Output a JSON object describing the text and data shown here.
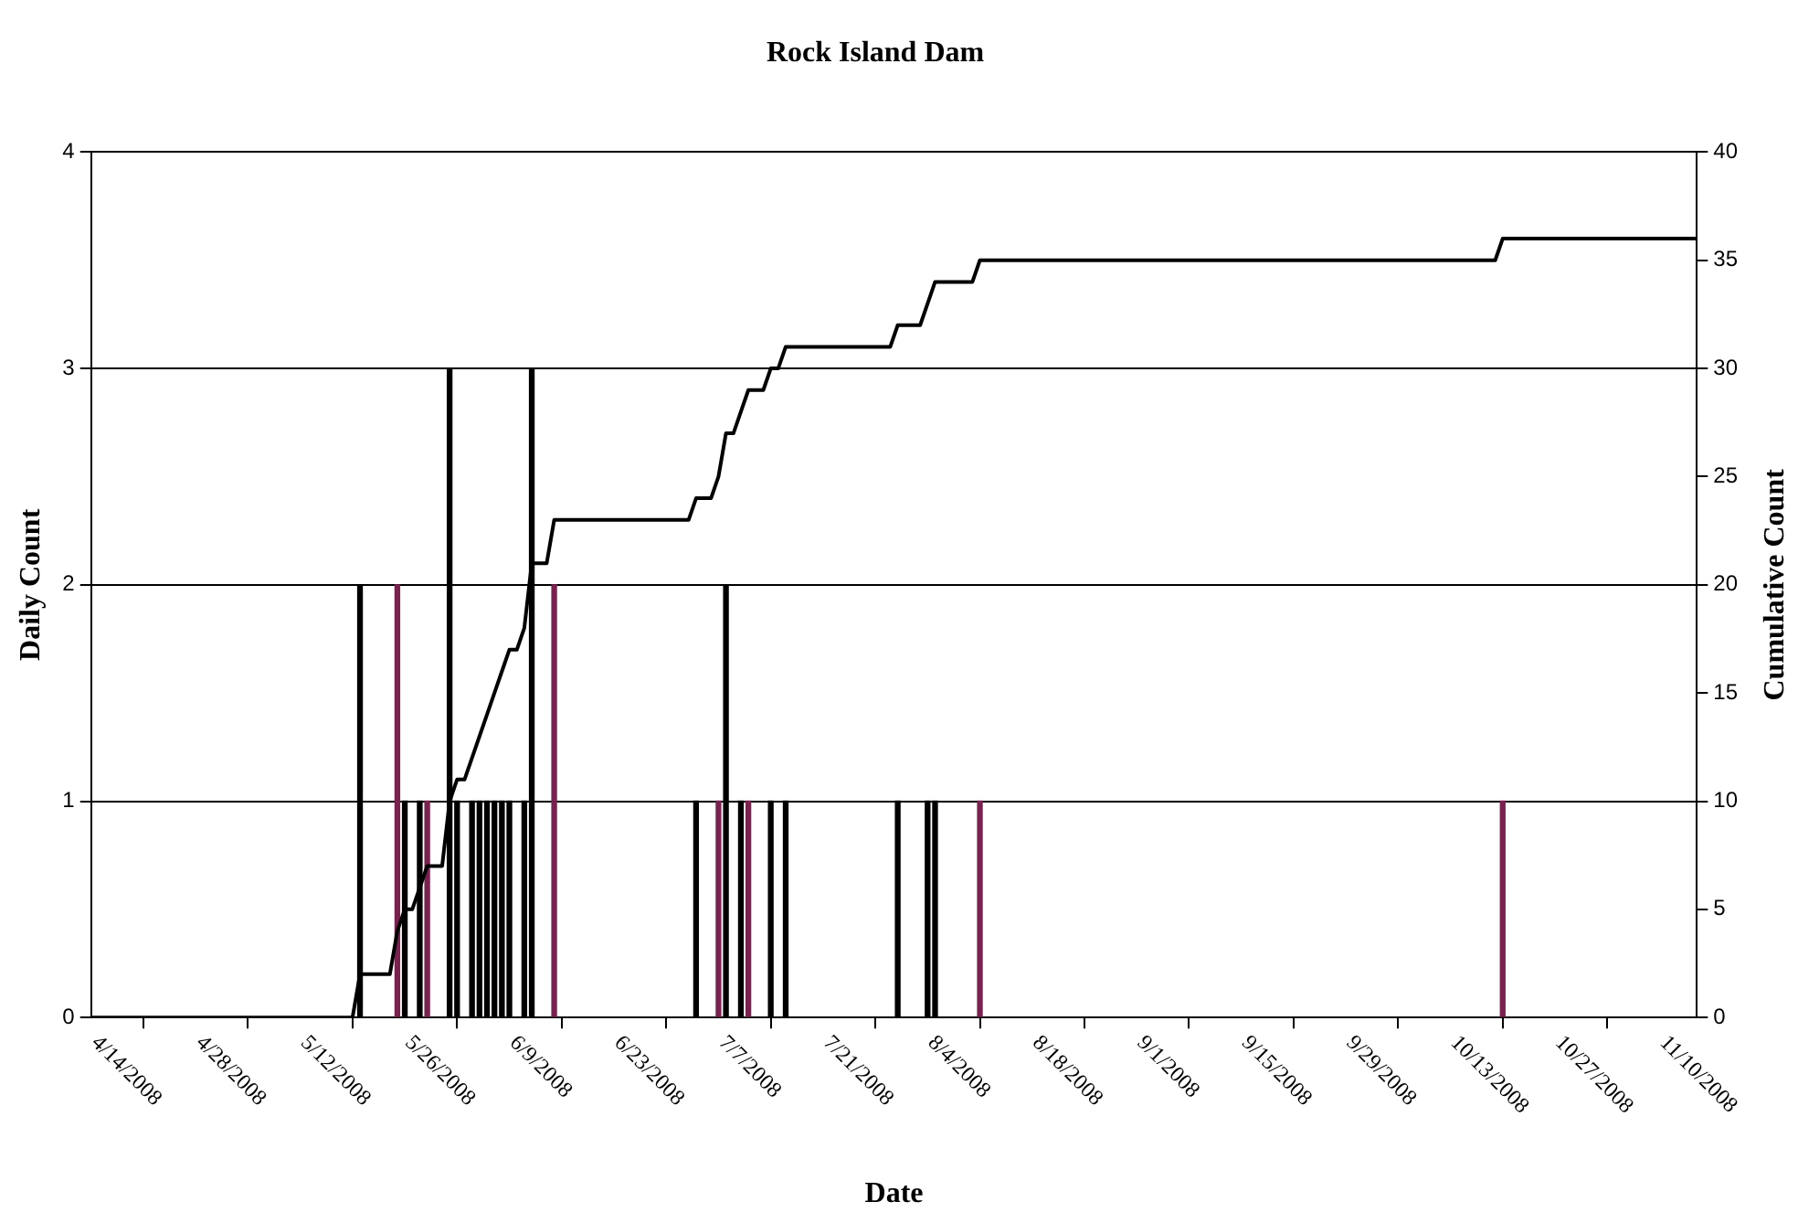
{
  "chart_data": {
    "type": "bar",
    "title": "Rock Island Dam",
    "xlabel": "Date",
    "ylabel": "Daily Count",
    "y2label": "Cumulative Count",
    "x": [
      "2008-05-20",
      "2008-05-25",
      "2008-05-26",
      "2008-05-28",
      "2008-05-29",
      "2008-06-01",
      "2008-06-02",
      "2008-06-04",
      "2008-06-05",
      "2008-06-06",
      "2008-06-07",
      "2008-06-08",
      "2008-06-09",
      "2008-06-11",
      "2008-06-12",
      "2008-06-15",
      "2008-07-04",
      "2008-07-07",
      "2008-07-08",
      "2008-07-10",
      "2008-07-11",
      "2008-07-14",
      "2008-07-16",
      "2008-07-31",
      "2008-08-04",
      "2008-08-05",
      "2008-08-11",
      "2008-10-20"
    ],
    "series": [
      {
        "values": [
          2,
          2,
          1,
          1,
          1,
          3,
          1,
          1,
          1,
          1,
          1,
          1,
          1,
          1,
          3,
          2,
          1,
          1,
          2,
          1,
          1,
          1,
          1,
          1,
          1,
          1,
          1,
          1
        ],
        "colors": [
          "#000000",
          "#7b2150",
          "#000000",
          "#000000",
          "#7b2150",
          "#000000",
          "#000000",
          "#000000",
          "#000000",
          "#000000",
          "#000000",
          "#000000",
          "#000000",
          "#000000",
          "#000000",
          "#7b2150",
          "#000000",
          "#7b2150",
          "#000000",
          "#000000",
          "#7b2150",
          "#000000",
          "#000000",
          "#000000",
          "#000000",
          "#000000",
          "#7b2150",
          "#7b2150"
        ]
      },
      {
        "type": "line",
        "axis": "y2",
        "color": "#000000",
        "x": [
          "2008-04-14",
          "2008-05-19",
          "2008-05-20",
          "2008-05-24",
          "2008-05-25",
          "2008-05-26",
          "2008-05-27",
          "2008-05-28",
          "2008-05-29",
          "2008-05-31",
          "2008-06-01",
          "2008-06-02",
          "2008-06-03",
          "2008-06-04",
          "2008-06-05",
          "2008-06-06",
          "2008-06-07",
          "2008-06-08",
          "2008-06-09",
          "2008-06-10",
          "2008-06-11",
          "2008-06-12",
          "2008-06-14",
          "2008-06-15",
          "2008-07-03",
          "2008-07-04",
          "2008-07-06",
          "2008-07-07",
          "2008-07-08",
          "2008-07-09",
          "2008-07-10",
          "2008-07-11",
          "2008-07-13",
          "2008-07-14",
          "2008-07-15",
          "2008-07-16",
          "2008-07-30",
          "2008-07-31",
          "2008-08-03",
          "2008-08-04",
          "2008-08-05",
          "2008-08-10",
          "2008-08-11",
          "2008-10-19",
          "2008-10-20",
          "2008-11-15"
        ],
        "values": [
          0,
          0,
          2,
          2,
          4,
          5,
          5,
          6,
          7,
          7,
          10,
          11,
          11,
          12,
          13,
          14,
          15,
          16,
          17,
          17,
          18,
          21,
          21,
          23,
          23,
          24,
          24,
          25,
          27,
          27,
          28,
          29,
          29,
          30,
          30,
          31,
          31,
          32,
          32,
          33,
          34,
          34,
          35,
          35,
          36,
          36
        ]
      }
    ],
    "xlim": [
      "2008-04-14",
      "2008-11-15"
    ],
    "xticks": [
      {
        "value": "2008-04-14",
        "label": "4/14/2008"
      },
      {
        "value": "2008-04-28",
        "label": "4/28/2008"
      },
      {
        "value": "2008-05-12",
        "label": "5/12/2008"
      },
      {
        "value": "2008-05-26",
        "label": "5/26/2008"
      },
      {
        "value": "2008-06-09",
        "label": "6/9/2008"
      },
      {
        "value": "2008-06-23",
        "label": "6/23/2008"
      },
      {
        "value": "2008-07-07",
        "label": "7/7/2008"
      },
      {
        "value": "2008-07-21",
        "label": "7/21/2008"
      },
      {
        "value": "2008-08-04",
        "label": "8/4/2008"
      },
      {
        "value": "2008-08-18",
        "label": "8/18/2008"
      },
      {
        "value": "2008-09-01",
        "label": "9/1/2008"
      },
      {
        "value": "2008-09-15",
        "label": "9/15/2008"
      },
      {
        "value": "2008-09-29",
        "label": "9/29/2008"
      },
      {
        "value": "2008-10-13",
        "label": "10/13/2008"
      },
      {
        "value": "2008-10-27",
        "label": "10/27/2008"
      },
      {
        "value": "2008-11-10",
        "label": "11/10/2008"
      }
    ],
    "ylim": [
      0,
      4
    ],
    "yticks": [
      0,
      1,
      2,
      3,
      4
    ],
    "y2lim": [
      0,
      40
    ],
    "y2ticks": [
      0,
      5,
      10,
      15,
      20,
      25,
      30,
      35,
      40
    ],
    "grid": "y",
    "legend": false,
    "marker": "none",
    "line_style": "solid"
  }
}
